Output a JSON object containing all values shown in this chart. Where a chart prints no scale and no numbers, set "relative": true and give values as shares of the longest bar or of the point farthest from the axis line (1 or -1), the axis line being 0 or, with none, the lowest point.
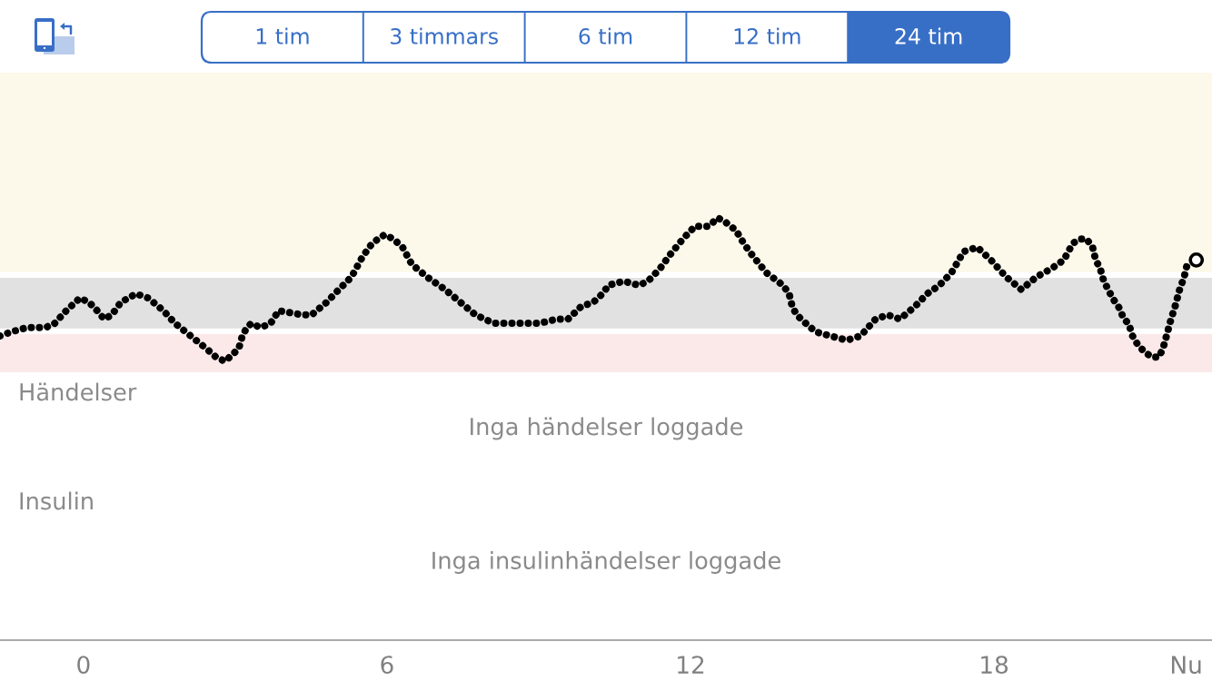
{
  "chart_data": [
    {
      "type": "other",
      "categories": [
        "1 tim",
        "3 timmars",
        "6 tim",
        "12 tim",
        "24 tim"
      ],
      "colors": [
        "#ffffff",
        "#ffffff",
        "#ffffff",
        "#ffffff",
        "#386fc6"
      ],
      "color": "#386fc6"
    },
    {
      "type": "line",
      "relative": true,
      "line_style": "dotted",
      "xlim": [
        -1.65,
        22.31
      ],
      "xticks": [
        0,
        6,
        12,
        18,
        {
          "value": 21.8,
          "label": "Nu"
        }
      ],
      "x": [
        -1.65,
        -1.42,
        -1.11,
        -0.75,
        -0.57,
        -0.34,
        -0.07,
        0.11,
        0.27,
        0.41,
        0.56,
        0.74,
        1.04,
        1.28,
        1.58,
        1.81,
        2.12,
        2.43,
        2.62,
        2.8,
        2.98,
        3.07,
        3.14,
        3.23,
        3.32,
        3.5,
        3.7,
        3.86,
        4.33,
        4.51,
        4.81,
        5.05,
        5.3,
        5.48,
        5.53,
        5.71,
        5.95,
        6.13,
        6.31,
        6.49,
        6.79,
        7.15,
        7.45,
        7.75,
        8.11,
        8.47,
        8.77,
        9.01,
        9.36,
        9.58,
        9.84,
        10.08,
        10.26,
        10.38,
        10.68,
        10.98,
        11.16,
        11.4,
        11.58,
        11.85,
        12.09,
        12.24,
        12.36,
        12.54,
        12.69,
        12.9,
        13.05,
        13.23,
        13.5,
        13.83,
        13.95,
        14.01,
        14.1,
        14.28,
        14.47,
        14.77,
        15.09,
        15.36,
        15.66,
        15.9,
        16.14,
        16.44,
        16.68,
        16.92,
        17.16,
        17.4,
        17.67,
        17.94,
        18.24,
        18.54,
        18.84,
        19.14,
        19.38,
        19.56,
        19.71,
        19.83,
        19.95,
        20.01,
        20.1,
        20.17,
        20.26,
        20.34,
        20.46,
        20.57,
        20.66,
        20.74,
        20.84,
        20.99,
        21.14,
        21.26,
        21.34,
        21.41,
        21.5,
        21.58,
        21.67,
        21.76,
        21.82
      ],
      "series": [
        {
          "color": "#000000",
          "values": [
            0.72,
            0.73,
            0.74,
            0.74,
            0.75,
            0.78,
            0.81,
            0.8,
            0.78,
            0.76,
            0.77,
            0.8,
            0.82,
            0.81,
            0.78,
            0.75,
            0.72,
            0.69,
            0.67,
            0.66,
            0.68,
            0.69,
            0.72,
            0.74,
            0.75,
            0.74,
            0.75,
            0.78,
            0.77,
            0.77,
            0.8,
            0.83,
            0.86,
            0.9,
            0.91,
            0.94,
            0.96,
            0.95,
            0.93,
            0.89,
            0.86,
            0.83,
            0.8,
            0.77,
            0.75,
            0.75,
            0.75,
            0.75,
            0.76,
            0.76,
            0.79,
            0.8,
            0.82,
            0.84,
            0.85,
            0.84,
            0.85,
            0.88,
            0.91,
            0.95,
            0.98,
            0.98,
            0.98,
            1.0,
            0.99,
            0.97,
            0.94,
            0.91,
            0.87,
            0.84,
            0.82,
            0.79,
            0.77,
            0.75,
            0.73,
            0.72,
            0.71,
            0.72,
            0.76,
            0.77,
            0.76,
            0.79,
            0.82,
            0.84,
            0.87,
            0.92,
            0.93,
            0.9,
            0.86,
            0.83,
            0.86,
            0.88,
            0.9,
            0.94,
            0.95,
            0.95,
            0.93,
            0.9,
            0.88,
            0.85,
            0.83,
            0.81,
            0.79,
            0.76,
            0.75,
            0.72,
            0.7,
            0.68,
            0.67,
            0.67,
            0.69,
            0.72,
            0.76,
            0.79,
            0.83,
            0.86,
            0.89
          ]
        },
        {
          "color": "#000000",
          "marker": "circle",
          "x": [
            22.0
          ],
          "values": [
            0.9
          ]
        }
      ],
      "bands": [
        {
          "axis": "y",
          "from": 0.871,
          "to": 1.344,
          "color": "#fcf8ea"
        },
        {
          "axis": "y",
          "from": 0.738,
          "to": 0.858,
          "color": "#e1e1e1"
        },
        {
          "axis": "y",
          "from": 0.634,
          "to": 0.725,
          "color": "#fbe9e9"
        }
      ]
    },
    {
      "type": "other",
      "title": "Händelser",
      "annotations": [
        "Inga händelser loggade"
      ]
    },
    {
      "type": "other",
      "title": "Insulin",
      "annotations": [
        "Inga insulinhändelser loggade"
      ]
    }
  ]
}
